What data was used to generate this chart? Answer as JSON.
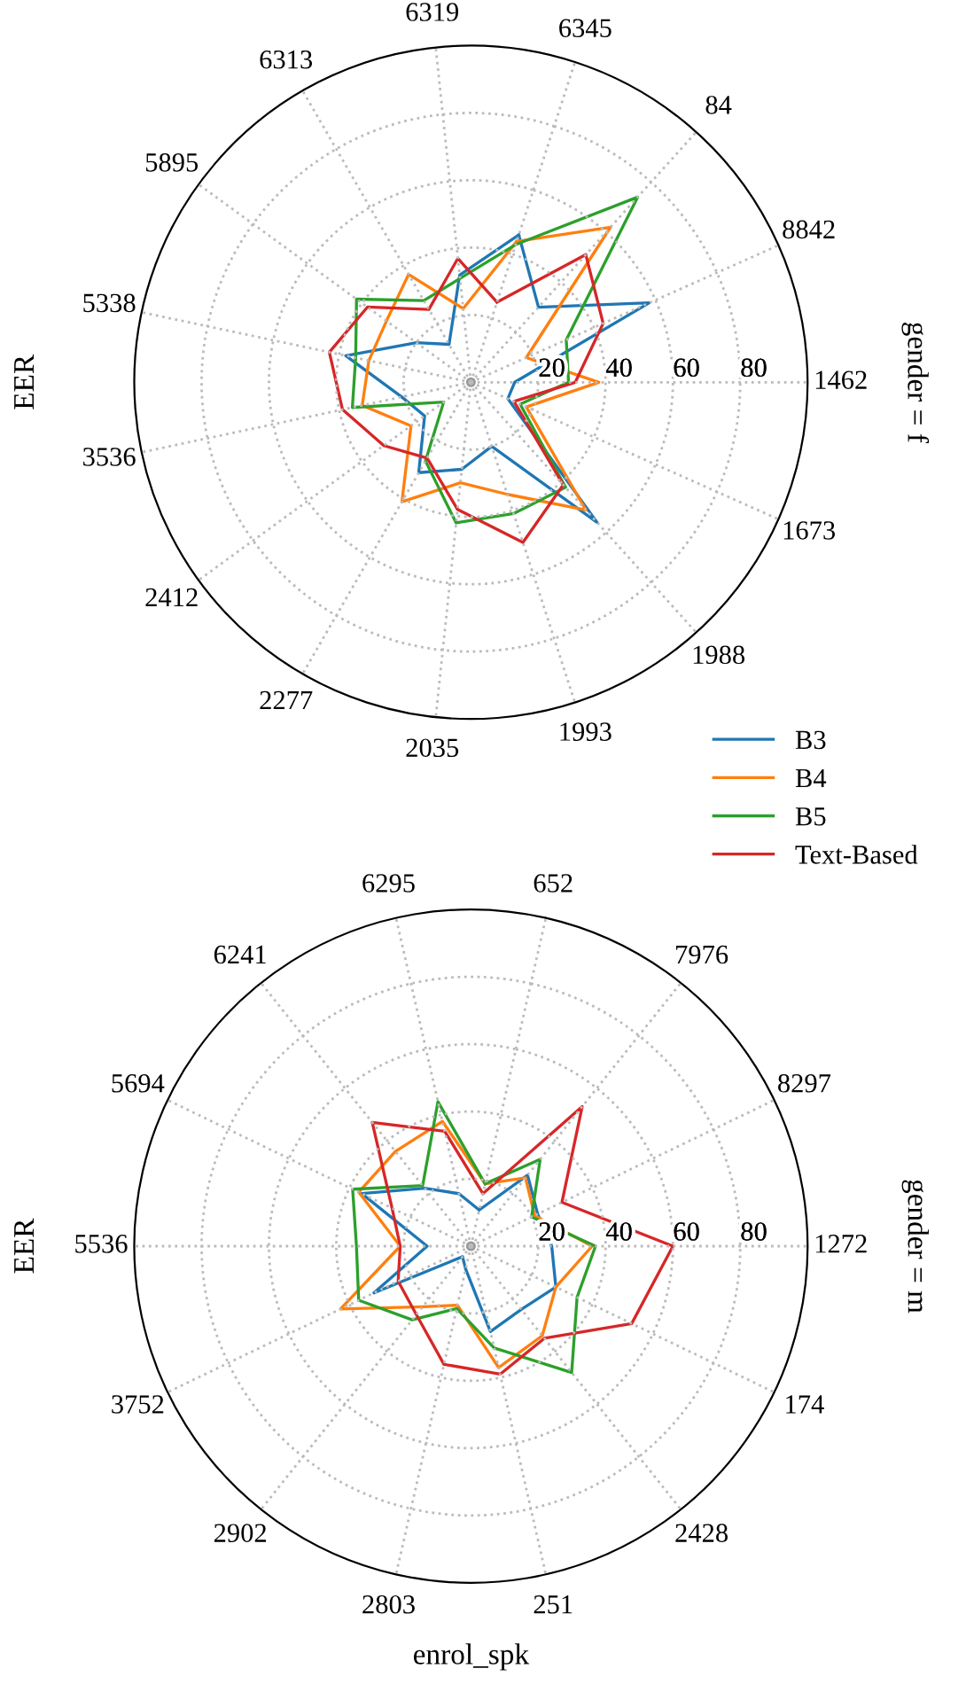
{
  "chart_data": [
    {
      "type": "radar",
      "title": "gender = f",
      "ylabel": "EER",
      "categories": [
        "6345",
        "84",
        "8842",
        "1462",
        "1673",
        "1988",
        "1993",
        "2035",
        "2277",
        "2412",
        "3536",
        "5338",
        "5895",
        "6313",
        "6319"
      ],
      "ylim": [
        0,
        100
      ],
      "yticks": [
        20,
        40,
        60,
        80
      ],
      "grid": true,
      "legend": "right",
      "line_style": "solid",
      "marker": "none",
      "series": [
        {
          "name": "B3",
          "color": "#1f77b4",
          "values": [
            46,
            30,
            58,
            13,
            12,
            56,
            20,
            26,
            31,
            17,
            21,
            38,
            20,
            13,
            32
          ]
        },
        {
          "name": "B4",
          "color": "#ff7f0e",
          "values": [
            44,
            62,
            18,
            38,
            18,
            51,
            35,
            30,
            41,
            22,
            33,
            31,
            31,
            37,
            22
          ]
        },
        {
          "name": "B5",
          "color": "#2ca02c",
          "values": [
            43,
            74,
            31,
            29,
            16,
            42,
            41,
            42,
            27,
            10,
            36,
            35,
            42,
            28,
            31
          ]
        },
        {
          "name": "Text-Based",
          "color": "#d62728",
          "values": [
            25,
            51,
            43,
            31,
            14,
            41,
            50,
            38,
            26,
            32,
            39,
            43,
            38,
            25,
            37
          ]
        }
      ]
    },
    {
      "type": "radar",
      "title": "gender = m",
      "ylabel": "EER",
      "xlabel": "enrol_spk",
      "categories": [
        "652",
        "7976",
        "8297",
        "1272",
        "174",
        "2428",
        "251",
        "2803",
        "2902",
        "3752",
        "5536",
        "5694",
        "6241",
        "6295"
      ],
      "ylim": [
        0,
        100
      ],
      "yticks": [
        20,
        40,
        60,
        80
      ],
      "grid": true,
      "line_style": "solid",
      "marker": "none",
      "series": [
        {
          "color": "#1f77b4",
          "values": [
            11,
            27,
            22,
            24,
            28,
            24,
            26,
            7,
            4,
            32,
            13,
            36,
            22,
            16
          ]
        },
        {
          "color": "#ff7f0e",
          "values": [
            19,
            26,
            21,
            36,
            28,
            34,
            37,
            18,
            23,
            43,
            21,
            37,
            36,
            38
          ]
        },
        {
          "color": "#2ca02c",
          "values": [
            19,
            33,
            20,
            37,
            35,
            48,
            31,
            19,
            28,
            37,
            34,
            39,
            23,
            44
          ]
        },
        {
          "color": "#d62728",
          "values": [
            16,
            53,
            30,
            60,
            53,
            35,
            39,
            36,
            26,
            24,
            21,
            26,
            47,
            35
          ]
        }
      ]
    }
  ]
}
